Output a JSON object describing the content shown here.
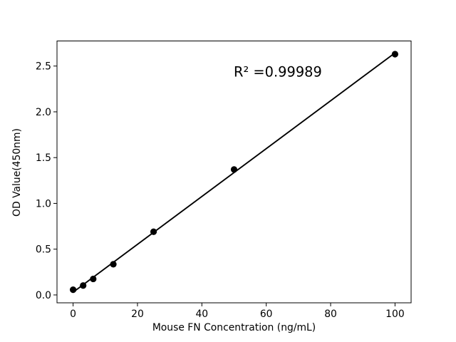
{
  "chart_data": {
    "type": "scatter",
    "title": "",
    "xlabel": "Mouse FN Concentration (ng/mL)",
    "ylabel": "OD Value(450nm)",
    "points": [
      {
        "x": 0,
        "y": 0.057
      },
      {
        "x": 3.125,
        "y": 0.103
      },
      {
        "x": 6.25,
        "y": 0.175
      },
      {
        "x": 12.5,
        "y": 0.335
      },
      {
        "x": 25,
        "y": 0.69
      },
      {
        "x": 50,
        "y": 1.37
      },
      {
        "x": 100,
        "y": 2.63
      }
    ],
    "fit_line": {
      "slope": 0.02614,
      "intercept": 0.0298,
      "x_start": 0,
      "x_end": 100
    },
    "annotation": {
      "text": "R² =0.99989",
      "r_squared": 0.99989
    },
    "xticks": {
      "values": [
        0,
        20,
        40,
        60,
        80,
        100
      ],
      "labels": [
        "0",
        "20",
        "40",
        "60",
        "80",
        "100"
      ]
    },
    "yticks": {
      "values": [
        0,
        0.5,
        1.0,
        1.5,
        2.0,
        2.5
      ],
      "labels": [
        "0.0",
        "0.5",
        "1.0",
        "1.5",
        "2.0",
        "2.5"
      ]
    },
    "xlim": [
      -5,
      105
    ],
    "ylim": [
      -0.086,
      2.774
    ],
    "grid": false,
    "legend_position": "none",
    "colors": {
      "marker": "#000000",
      "line": "#000000",
      "text": "#000000",
      "spine": "#000000",
      "background": "#ffffff"
    }
  }
}
